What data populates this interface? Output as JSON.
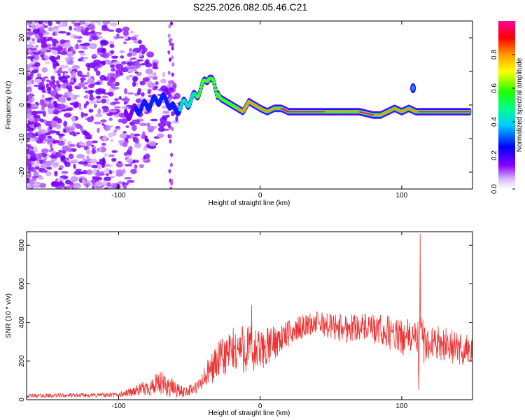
{
  "title": "S225.2026.082.05.46.C21",
  "chart_data": [
    {
      "type": "heatmap",
      "name": "spectrogram",
      "xlabel": "Height of straight line (km)",
      "ylabel": "Frequency (Hz)",
      "xlim": [
        -165,
        150
      ],
      "ylim": [
        -25,
        25
      ],
      "x_ticks": [
        -100,
        0,
        100
      ],
      "y_ticks": [
        -20,
        -10,
        0,
        10,
        20
      ],
      "colorbar": {
        "label": "Normalized spectral amplitude",
        "range": [
          0,
          1
        ],
        "ticks": [
          "0.0",
          "0.2",
          "0.4",
          "0.6",
          "0.8"
        ],
        "tick_values": [
          0.0,
          0.2,
          0.4,
          0.6,
          0.8
        ]
      },
      "ridge": {
        "x": [
          -95,
          -90,
          -85,
          -80,
          -75,
          -70,
          -65,
          -60,
          -55,
          -50,
          -45,
          -40,
          -36,
          -32,
          -28,
          -24,
          -20,
          -16,
          -12,
          -8,
          -4,
          0,
          5,
          10,
          15,
          20,
          30,
          40,
          50,
          60,
          70,
          80,
          85,
          90,
          95,
          100,
          105,
          110,
          115,
          120,
          130,
          140,
          148
        ],
        "freq": [
          -3,
          -2,
          -1,
          0,
          1,
          2,
          1,
          -2,
          0,
          1,
          3,
          6,
          9,
          5,
          2,
          1,
          0,
          -1,
          -2,
          1,
          0,
          -1,
          -2,
          -1,
          -1,
          -2,
          -2,
          -2,
          -2,
          -2,
          -2,
          -3,
          -3,
          -2,
          -1,
          -2,
          -1,
          -2,
          -2,
          -2,
          -2,
          -2,
          -2
        ],
        "amp": [
          0.2,
          0.2,
          0.25,
          0.25,
          0.25,
          0.3,
          0.3,
          0.35,
          0.4,
          0.5,
          0.55,
          0.6,
          0.6,
          0.6,
          0.7,
          0.7,
          0.7,
          0.75,
          0.8,
          0.85,
          0.8,
          0.85,
          0.9,
          0.9,
          0.95,
          1.0,
          1.0,
          1.0,
          0.9,
          0.85,
          0.95,
          0.95,
          0.9,
          0.85,
          0.8,
          0.85,
          0.85,
          0.9,
          1.0,
          1.0,
          1.0,
          1.0,
          1.0
        ]
      },
      "noise_x_range": [
        -165,
        -55
      ]
    },
    {
      "type": "line",
      "name": "snr",
      "xlabel": "Height of straight line (km)",
      "ylabel": "SNR (10 * v/v)",
      "xlim": [
        -165,
        150
      ],
      "ylim": [
        0,
        870
      ],
      "x_ticks": [
        -100,
        0,
        100
      ],
      "y_ticks": [
        0,
        200,
        400,
        600,
        800
      ],
      "color": "#ee3333",
      "envelope": {
        "x": [
          -165,
          -100,
          -80,
          -70,
          -65,
          -55,
          -50,
          -45,
          -40,
          -35,
          -30,
          -20,
          -10,
          -5,
          0,
          10,
          20,
          30,
          40,
          50,
          60,
          70,
          80,
          90,
          100,
          105,
          108,
          112,
          113,
          116,
          120,
          130,
          140,
          150
        ],
        "mean": [
          20,
          25,
          60,
          80,
          70,
          40,
          50,
          60,
          100,
          160,
          200,
          250,
          270,
          240,
          250,
          300,
          340,
          380,
          400,
          380,
          370,
          380,
          360,
          350,
          320,
          320,
          330,
          300,
          380,
          280,
          300,
          290,
          260,
          260
        ],
        "spread": [
          10,
          12,
          40,
          70,
          60,
          30,
          30,
          35,
          60,
          80,
          100,
          120,
          140,
          140,
          110,
          90,
          70,
          60,
          60,
          70,
          80,
          70,
          80,
          90,
          90,
          100,
          80,
          120,
          120,
          110,
          80,
          90,
          90,
          80
        ]
      },
      "spikes": [
        {
          "x": 113,
          "value": 860
        },
        {
          "x": 112,
          "value": 50
        },
        {
          "x": -6,
          "value": 490
        }
      ]
    }
  ]
}
